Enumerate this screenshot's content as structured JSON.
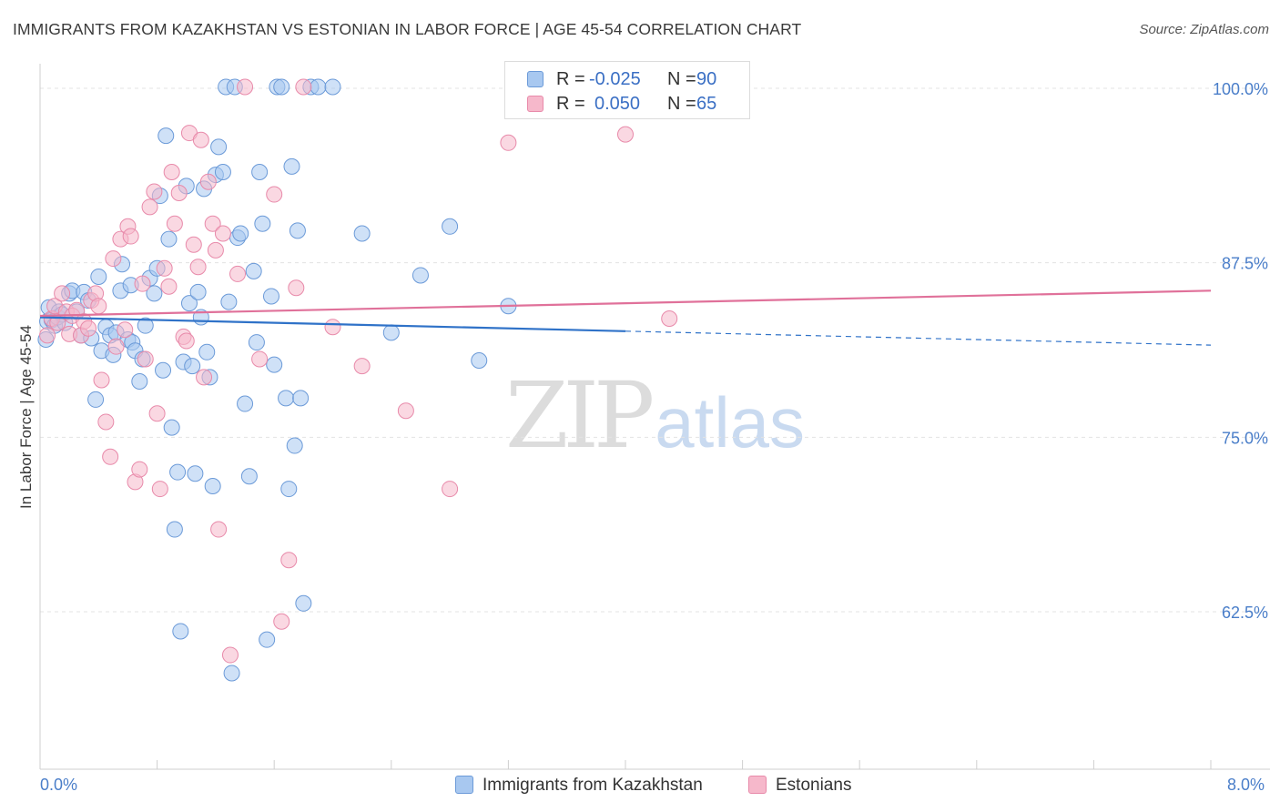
{
  "header": {
    "title": "IMMIGRANTS FROM KAZAKHSTAN VS ESTONIAN IN LABOR FORCE | AGE 45-54 CORRELATION CHART",
    "source": "Source: ZipAtlas.com"
  },
  "watermark": {
    "zip": "ZIP",
    "atlas": "atlas"
  },
  "legend": {
    "rows": [
      {
        "r_label": "R =",
        "r_value": "-0.025",
        "n_label": "N =",
        "n_value": "90",
        "color": "#a8c8f0"
      },
      {
        "r_label": "R =",
        "r_value": "0.050",
        "n_label": "N =",
        "n_value": "65",
        "color": "#f6b8cb"
      }
    ]
  },
  "bottom_legend": {
    "series1": "Immigrants from Kazakhstan",
    "series2": "Estonians"
  },
  "colors": {
    "blue_fill": "#a8c8f0",
    "blue_stroke": "#6b9ad8",
    "blue_line": "#2f72c8",
    "pink_fill": "#f6b8cb",
    "pink_stroke": "#e88aaa",
    "pink_line": "#e0719a",
    "tick_text": "#4a7ec9",
    "grid": "#e3e3e3"
  },
  "chart_data": {
    "type": "scatter",
    "title": "IMMIGRANTS FROM KAZAKHSTAN VS ESTONIAN IN LABOR FORCE | AGE 45-54 CORRELATION CHART",
    "xlabel": "",
    "ylabel": "In Labor Force | Age 45-54",
    "xlim": [
      0,
      8
    ],
    "ylim": [
      50,
      101.5
    ],
    "x_tick_labels": [
      "0.0%",
      "8.0%"
    ],
    "y_ticks": [
      100,
      87.5,
      75,
      62.5
    ],
    "y_tick_labels": [
      "100.0%",
      "87.5%",
      "75.0%",
      "62.5%"
    ],
    "grid": "horizontal-dashed",
    "legend_placement": "top-center",
    "series": [
      {
        "name": "Immigrants from Kazakhstan",
        "color": "#a8c8f0",
        "trend": {
          "x0": 0.0,
          "y0": 83.6,
          "x1": 4.0,
          "y1": 82.6,
          "dashed_to_x": 8.0,
          "dashed_to_y": 81.6
        },
        "points": [
          [
            0.04,
            82.0
          ],
          [
            0.05,
            83.3
          ],
          [
            0.06,
            84.3
          ],
          [
            0.08,
            83.4
          ],
          [
            0.1,
            83.0
          ],
          [
            0.12,
            83.6
          ],
          [
            0.13,
            84.0
          ],
          [
            0.15,
            83.8
          ],
          [
            0.17,
            83.2
          ],
          [
            0.2,
            85.3
          ],
          [
            0.22,
            85.5
          ],
          [
            0.25,
            84.0
          ],
          [
            0.28,
            82.3
          ],
          [
            0.3,
            85.4
          ],
          [
            0.33,
            84.8
          ],
          [
            0.35,
            82.1
          ],
          [
            0.38,
            77.7
          ],
          [
            0.4,
            86.5
          ],
          [
            0.42,
            81.2
          ],
          [
            0.45,
            82.9
          ],
          [
            0.48,
            82.3
          ],
          [
            0.5,
            80.9
          ],
          [
            0.52,
            82.5
          ],
          [
            0.55,
            85.5
          ],
          [
            0.56,
            87.4
          ],
          [
            0.6,
            82.0
          ],
          [
            0.62,
            85.9
          ],
          [
            0.63,
            81.8
          ],
          [
            0.65,
            81.2
          ],
          [
            0.68,
            79.0
          ],
          [
            0.7,
            80.6
          ],
          [
            0.72,
            83.0
          ],
          [
            0.75,
            86.4
          ],
          [
            0.78,
            85.3
          ],
          [
            0.8,
            87.1
          ],
          [
            0.82,
            92.3
          ],
          [
            0.84,
            79.8
          ],
          [
            0.86,
            96.6
          ],
          [
            0.88,
            89.2
          ],
          [
            0.9,
            75.7
          ],
          [
            0.92,
            68.4
          ],
          [
            0.94,
            72.5
          ],
          [
            0.96,
            61.1
          ],
          [
            0.98,
            80.4
          ],
          [
            1.0,
            93.0
          ],
          [
            1.02,
            84.6
          ],
          [
            1.04,
            80.1
          ],
          [
            1.06,
            72.4
          ],
          [
            1.08,
            85.4
          ],
          [
            1.1,
            83.6
          ],
          [
            1.12,
            92.8
          ],
          [
            1.14,
            81.1
          ],
          [
            1.16,
            79.3
          ],
          [
            1.18,
            71.5
          ],
          [
            1.2,
            93.8
          ],
          [
            1.22,
            95.8
          ],
          [
            1.25,
            94.0
          ],
          [
            1.27,
            100.1
          ],
          [
            1.29,
            84.7
          ],
          [
            1.31,
            58.1
          ],
          [
            1.33,
            100.1
          ],
          [
            1.35,
            89.3
          ],
          [
            1.37,
            89.6
          ],
          [
            1.4,
            77.4
          ],
          [
            1.43,
            72.2
          ],
          [
            1.46,
            86.9
          ],
          [
            1.48,
            81.8
          ],
          [
            1.5,
            94.0
          ],
          [
            1.52,
            90.3
          ],
          [
            1.55,
            60.5
          ],
          [
            1.58,
            85.1
          ],
          [
            1.6,
            80.2
          ],
          [
            1.62,
            100.1
          ],
          [
            1.65,
            100.1
          ],
          [
            1.68,
            77.8
          ],
          [
            1.7,
            71.3
          ],
          [
            1.72,
            94.4
          ],
          [
            1.74,
            74.4
          ],
          [
            1.76,
            89.8
          ],
          [
            1.78,
            77.8
          ],
          [
            1.8,
            63.1
          ],
          [
            1.85,
            100.1
          ],
          [
            1.9,
            100.1
          ],
          [
            2.0,
            100.1
          ],
          [
            2.2,
            89.6
          ],
          [
            2.4,
            82.5
          ],
          [
            2.6,
            86.6
          ],
          [
            2.8,
            90.1
          ],
          [
            3.0,
            80.5
          ],
          [
            3.2,
            84.4
          ]
        ]
      },
      {
        "name": "Estonians",
        "color": "#f6b8cb",
        "trend": {
          "x0": 0.0,
          "y0": 83.7,
          "x1": 8.0,
          "y1": 85.5
        },
        "points": [
          [
            0.05,
            82.3
          ],
          [
            0.08,
            83.5
          ],
          [
            0.1,
            84.4
          ],
          [
            0.12,
            83.2
          ],
          [
            0.15,
            85.3
          ],
          [
            0.18,
            84.0
          ],
          [
            0.2,
            82.4
          ],
          [
            0.22,
            83.7
          ],
          [
            0.25,
            84.1
          ],
          [
            0.28,
            82.3
          ],
          [
            0.3,
            83.3
          ],
          [
            0.33,
            82.8
          ],
          [
            0.35,
            84.8
          ],
          [
            0.38,
            85.3
          ],
          [
            0.4,
            84.4
          ],
          [
            0.42,
            79.1
          ],
          [
            0.45,
            76.1
          ],
          [
            0.48,
            73.6
          ],
          [
            0.5,
            87.8
          ],
          [
            0.52,
            81.5
          ],
          [
            0.55,
            89.2
          ],
          [
            0.58,
            82.7
          ],
          [
            0.6,
            90.1
          ],
          [
            0.62,
            89.4
          ],
          [
            0.65,
            71.8
          ],
          [
            0.68,
            72.7
          ],
          [
            0.7,
            86.0
          ],
          [
            0.72,
            80.6
          ],
          [
            0.75,
            91.5
          ],
          [
            0.78,
            92.6
          ],
          [
            0.8,
            76.7
          ],
          [
            0.82,
            71.3
          ],
          [
            0.85,
            87.1
          ],
          [
            0.88,
            85.8
          ],
          [
            0.9,
            94.0
          ],
          [
            0.92,
            90.3
          ],
          [
            0.95,
            92.5
          ],
          [
            0.98,
            82.2
          ],
          [
            1.0,
            81.9
          ],
          [
            1.02,
            96.8
          ],
          [
            1.05,
            88.8
          ],
          [
            1.08,
            87.2
          ],
          [
            1.1,
            96.3
          ],
          [
            1.12,
            79.3
          ],
          [
            1.15,
            93.3
          ],
          [
            1.18,
            90.3
          ],
          [
            1.2,
            88.4
          ],
          [
            1.22,
            68.4
          ],
          [
            1.25,
            89.6
          ],
          [
            1.3,
            59.4
          ],
          [
            1.35,
            86.7
          ],
          [
            1.4,
            100.1
          ],
          [
            1.5,
            80.6
          ],
          [
            1.6,
            92.4
          ],
          [
            1.65,
            61.8
          ],
          [
            1.7,
            66.2
          ],
          [
            1.75,
            85.7
          ],
          [
            1.8,
            100.1
          ],
          [
            2.0,
            82.9
          ],
          [
            2.2,
            80.1
          ],
          [
            2.5,
            76.9
          ],
          [
            2.8,
            71.3
          ],
          [
            3.2,
            96.1
          ],
          [
            4.0,
            96.7
          ],
          [
            4.3,
            83.5
          ]
        ]
      }
    ]
  }
}
